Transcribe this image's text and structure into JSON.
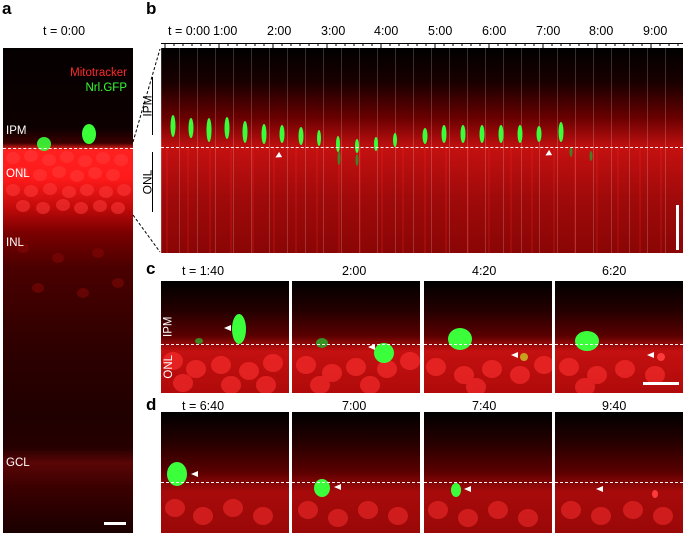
{
  "panel_a": {
    "letter": "a",
    "time": "t = 0:00",
    "legend_mitotracker": "Mitotracker",
    "legend_nrl": "Nrl.GFP",
    "label_ipm": "IPM",
    "label_onl": "ONL",
    "label_inl": "INL",
    "label_gcl": "GCL"
  },
  "panel_b": {
    "letter": "b",
    "ticks": [
      "t = 0:00",
      "1:00",
      "2:00",
      "3:00",
      "4:00",
      "5:00",
      "6:00",
      "7:00",
      "8:00",
      "9:00"
    ],
    "label_ipm": "IPM",
    "label_onl": "ONL"
  },
  "panel_c": {
    "letter": "c",
    "frames": [
      "t = 1:40",
      "2:00",
      "4:20",
      "6:20"
    ],
    "label_ipm": "IPM",
    "label_onl": "ONL"
  },
  "panel_d": {
    "letter": "d",
    "frames": [
      "t = 6:40",
      "7:00",
      "7:40",
      "9:40"
    ]
  },
  "colors": {
    "mitotracker": "#ff1a1a",
    "nrl_gfp": "#33ff33",
    "background": "#0b0000"
  }
}
